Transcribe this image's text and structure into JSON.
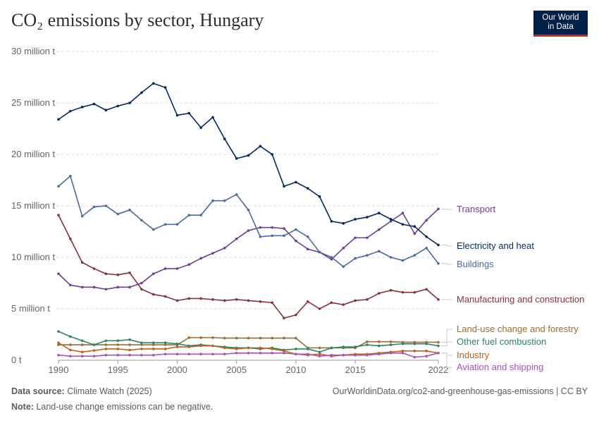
{
  "title": "CO₂ emissions by sector, Hungary",
  "logo": {
    "line1": "Our World",
    "line2": "in Data"
  },
  "footer": {
    "source_label": "Data source:",
    "source": "Climate Watch (2025)",
    "url": "OurWorldinData.org/co2-and-greenhouse-gas-emissions | CC BY",
    "note_label": "Note:",
    "note": "Land-use change emissions can be negative."
  },
  "chart_data": {
    "type": "line",
    "title": "CO₂ emissions by sector, Hungary",
    "ylim": [
      0,
      30
    ],
    "y_ticks": [
      {
        "v": 0,
        "label": "0 t"
      },
      {
        "v": 5,
        "label": "5 million t"
      },
      {
        "v": 10,
        "label": "10 million t"
      },
      {
        "v": 15,
        "label": "15 million t"
      },
      {
        "v": 20,
        "label": "20 million t"
      },
      {
        "v": 25,
        "label": "25 million t"
      },
      {
        "v": 30,
        "label": "30 million t"
      }
    ],
    "x_ticks": [
      1990,
      1995,
      2000,
      2005,
      2010,
      2015,
      2022
    ],
    "grid": true,
    "legend": "right-labels",
    "x": [
      1990,
      1991,
      1992,
      1993,
      1994,
      1995,
      1996,
      1997,
      1998,
      1999,
      2000,
      2001,
      2002,
      2003,
      2004,
      2005,
      2006,
      2007,
      2008,
      2009,
      2010,
      2011,
      2012,
      2013,
      2014,
      2015,
      2016,
      2017,
      2018,
      2019,
      2020,
      2021,
      2022
    ],
    "series": [
      {
        "name": "Transport",
        "color": "#6d3e91",
        "values": [
          8.4,
          7.3,
          7.1,
          7.1,
          6.9,
          7.1,
          7.1,
          7.5,
          8.4,
          8.9,
          8.9,
          9.3,
          9.9,
          10.4,
          10.9,
          11.8,
          12.6,
          12.9,
          12.9,
          12.8,
          11.6,
          10.8,
          10.5,
          9.8,
          10.9,
          11.9,
          11.9,
          12.7,
          13.5,
          14.3,
          12.3,
          13.6,
          14.7
        ]
      },
      {
        "name": "Electricity and heat",
        "color": "#00295b",
        "values": [
          23.4,
          24.2,
          24.6,
          24.9,
          24.3,
          24.7,
          25.0,
          26.0,
          26.9,
          26.5,
          23.8,
          24.0,
          22.6,
          23.6,
          21.5,
          19.6,
          19.9,
          20.8,
          20.0,
          16.9,
          17.3,
          16.7,
          15.9,
          13.5,
          13.3,
          13.7,
          13.9,
          14.3,
          13.7,
          13.2,
          13.0,
          12.0,
          11.2
        ]
      },
      {
        "name": "Buildings",
        "color": "#4c6a9c",
        "values": [
          16.9,
          17.9,
          14.0,
          14.9,
          15.0,
          14.2,
          14.6,
          13.6,
          12.7,
          13.2,
          13.2,
          14.1,
          14.1,
          15.5,
          15.5,
          16.1,
          14.6,
          12.0,
          12.1,
          12.1,
          12.7,
          12.0,
          10.5,
          10.0,
          9.1,
          9.9,
          10.2,
          10.6,
          10.0,
          9.7,
          10.2,
          10.9,
          9.4
        ]
      },
      {
        "name": "Manufacturing and construction",
        "color": "#883039",
        "values": [
          14.1,
          11.8,
          9.5,
          8.9,
          8.4,
          8.3,
          8.5,
          6.9,
          6.4,
          6.2,
          5.8,
          6.0,
          6.0,
          5.9,
          5.8,
          5.9,
          5.8,
          5.7,
          5.6,
          4.1,
          4.4,
          5.7,
          5.0,
          5.6,
          5.4,
          5.8,
          5.9,
          6.5,
          6.8,
          6.6,
          6.6,
          6.9,
          5.9
        ]
      },
      {
        "name": "Land-use change and forestry",
        "color": "#996d39",
        "values": [
          1.5,
          1.5,
          1.5,
          1.5,
          1.5,
          1.5,
          1.5,
          1.5,
          1.5,
          1.5,
          1.5,
          2.2,
          2.2,
          2.2,
          2.15,
          2.15,
          2.15,
          2.15,
          2.15,
          2.15,
          2.15,
          1.2,
          1.2,
          1.2,
          1.2,
          1.2,
          1.8,
          1.8,
          1.8,
          1.75,
          1.75,
          1.75,
          1.75
        ]
      },
      {
        "name": "Other fuel combustion",
        "color": "#2c8465",
        "values": [
          2.8,
          2.3,
          1.9,
          1.5,
          1.9,
          1.9,
          2.0,
          1.7,
          1.7,
          1.7,
          1.6,
          1.4,
          1.5,
          1.4,
          1.3,
          1.2,
          1.2,
          1.1,
          1.2,
          1.0,
          1.1,
          1.1,
          0.8,
          1.2,
          1.3,
          1.3,
          1.5,
          1.4,
          1.5,
          1.6,
          1.6,
          1.6,
          1.4
        ]
      },
      {
        "name": "Industry",
        "color": "#c15f1e",
        "values": [
          1.7,
          1.0,
          0.8,
          0.95,
          1.1,
          1.1,
          1.0,
          1.1,
          1.1,
          1.1,
          1.3,
          1.3,
          1.4,
          1.4,
          1.2,
          1.1,
          1.2,
          1.2,
          1.1,
          0.9,
          0.6,
          0.5,
          0.6,
          0.4,
          0.5,
          0.6,
          0.6,
          0.7,
          0.8,
          0.9,
          0.9,
          0.9,
          0.7
        ]
      },
      {
        "name": "Aviation and shipping",
        "color": "#a652ba",
        "values": [
          0.5,
          0.4,
          0.4,
          0.4,
          0.5,
          0.5,
          0.5,
          0.5,
          0.5,
          0.6,
          0.6,
          0.6,
          0.6,
          0.6,
          0.6,
          0.7,
          0.7,
          0.7,
          0.7,
          0.7,
          0.6,
          0.6,
          0.4,
          0.5,
          0.5,
          0.5,
          0.5,
          0.6,
          0.7,
          0.7,
          0.3,
          0.4,
          0.7
        ]
      }
    ]
  }
}
